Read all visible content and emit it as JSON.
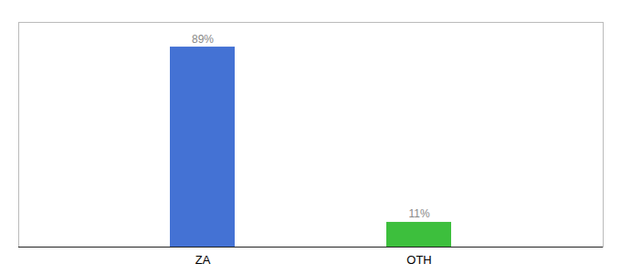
{
  "chart_data": {
    "type": "bar",
    "categories": [
      "ZA",
      "OTH"
    ],
    "values": [
      89,
      11
    ],
    "value_labels": [
      "89%",
      "11%"
    ],
    "colors": [
      "#4472d4",
      "#3dbf3d"
    ],
    "ylim": [
      0,
      100
    ],
    "data_labels": true,
    "tick_labels": "x"
  }
}
